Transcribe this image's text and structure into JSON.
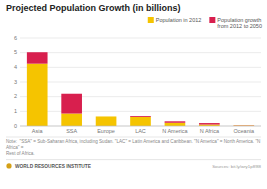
{
  "chart_data": {
    "type": "bar",
    "stacked": true,
    "title": "Projected Population Growth (in billions)",
    "categories": [
      "Asia",
      "SSA",
      "Europe",
      "LAC",
      "N America",
      "N Africa",
      "Oceania"
    ],
    "series": [
      {
        "name": "Population in 2012",
        "color": "#F5C400",
        "values": [
          4.25,
          0.85,
          0.65,
          0.62,
          0.22,
          0.1,
          0.037
        ]
      },
      {
        "name": "Population growth\nfrom 2012 to 2050",
        "color": "#D81F4E",
        "values": [
          0.78,
          1.35,
          0.0,
          0.06,
          0.1,
          0.1,
          0.018
        ]
      }
    ],
    "ylim": [
      0,
      6
    ],
    "yticks": [
      0,
      1,
      2,
      3,
      4,
      5,
      6
    ],
    "grid": true,
    "legend": "upper right",
    "note": "Note:  \"SSA\" = Sub-Saharan Africa, including Sudan. \"LAC\" = Latin America and Caribbean. \"N America\" = North America. \"N Africa\" =\nRest of Africa.",
    "credit": "WORLD RESOURCES INSTITUTE",
    "source": "Sources: bit.ly/wry1p89l8"
  }
}
